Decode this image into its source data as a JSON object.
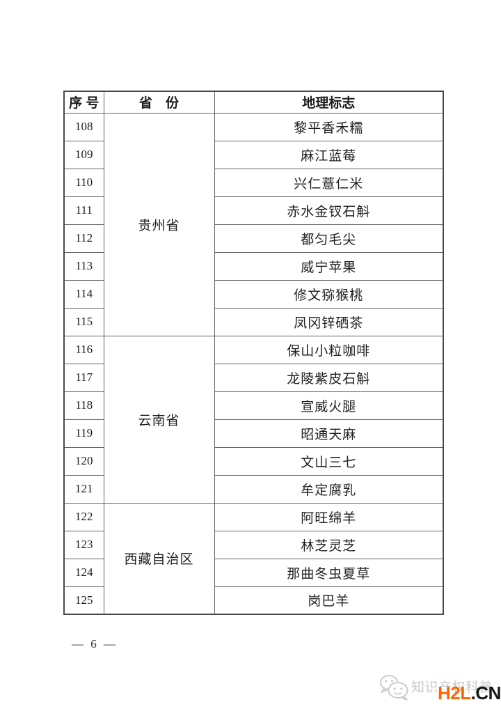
{
  "page": {
    "page_number": "— 6 —"
  },
  "table": {
    "headers": {
      "serial": "序 号",
      "province": "省　份",
      "gi": "地理标志"
    },
    "groups": [
      {
        "province": "贵州省",
        "items": [
          {
            "no": "108",
            "name": "黎平香禾糯"
          },
          {
            "no": "109",
            "name": "麻江蓝莓"
          },
          {
            "no": "110",
            "name": "兴仁薏仁米"
          },
          {
            "no": "111",
            "name": "赤水金钗石斛"
          },
          {
            "no": "112",
            "name": "都匀毛尖"
          },
          {
            "no": "113",
            "name": "威宁苹果"
          },
          {
            "no": "114",
            "name": "修文猕猴桃"
          },
          {
            "no": "115",
            "name": "凤冈锌硒茶"
          }
        ]
      },
      {
        "province": "云南省",
        "items": [
          {
            "no": "116",
            "name": "保山小粒咖啡"
          },
          {
            "no": "117",
            "name": "龙陵紫皮石斛"
          },
          {
            "no": "118",
            "name": "宣威火腿"
          },
          {
            "no": "119",
            "name": "昭通天麻"
          },
          {
            "no": "120",
            "name": "文山三七"
          },
          {
            "no": "121",
            "name": "牟定腐乳"
          }
        ]
      },
      {
        "province": "西藏自治区",
        "items": [
          {
            "no": "122",
            "name": "阿旺绵羊"
          },
          {
            "no": "123",
            "name": "林芝灵芝"
          },
          {
            "no": "124",
            "name": "那曲冬虫夏草"
          },
          {
            "no": "125",
            "name": "岗巴羊"
          }
        ]
      }
    ]
  },
  "watermark": {
    "icon": "wechat-icon",
    "text": "知识产权科普",
    "brand": "H2L",
    "brand_suffix": ".CN",
    "brand_color": "#FF6600",
    "suffix_color": "#161616",
    "text_color": "#c8c8c8"
  }
}
